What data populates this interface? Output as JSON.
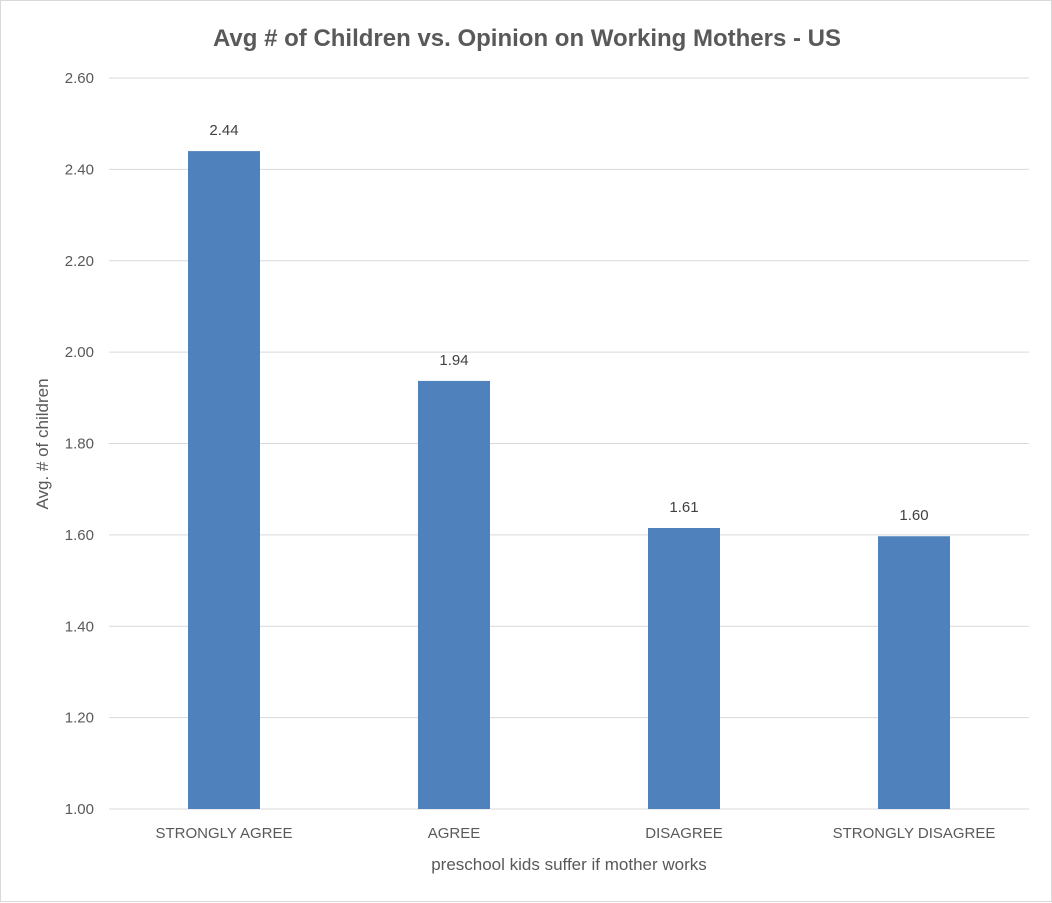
{
  "chart_data": {
    "type": "bar",
    "title": "Avg # of Children vs. Opinion on Working Mothers - US",
    "xlabel": "preschool kids suffer if mother works",
    "ylabel": "Avg. # of children",
    "categories": [
      "STRONGLY AGREE",
      "AGREE",
      "DISAGREE",
      "STRONGLY DISAGREE"
    ],
    "values": [
      2.44,
      1.937,
      1.615,
      1.597
    ],
    "data_labels": [
      "2.44",
      "1.94",
      "1.61",
      "1.60"
    ],
    "ylim": [
      1.0,
      2.6
    ],
    "yticks": [
      1.0,
      1.2,
      1.4,
      1.6,
      1.8,
      2.0,
      2.2,
      2.4,
      2.6
    ],
    "ytick_labels": [
      "1.00",
      "1.20",
      "1.40",
      "1.60",
      "1.80",
      "2.00",
      "2.20",
      "2.40",
      "2.60"
    ],
    "grid": true,
    "legend": "none",
    "bar_color": "#4f81bd"
  }
}
